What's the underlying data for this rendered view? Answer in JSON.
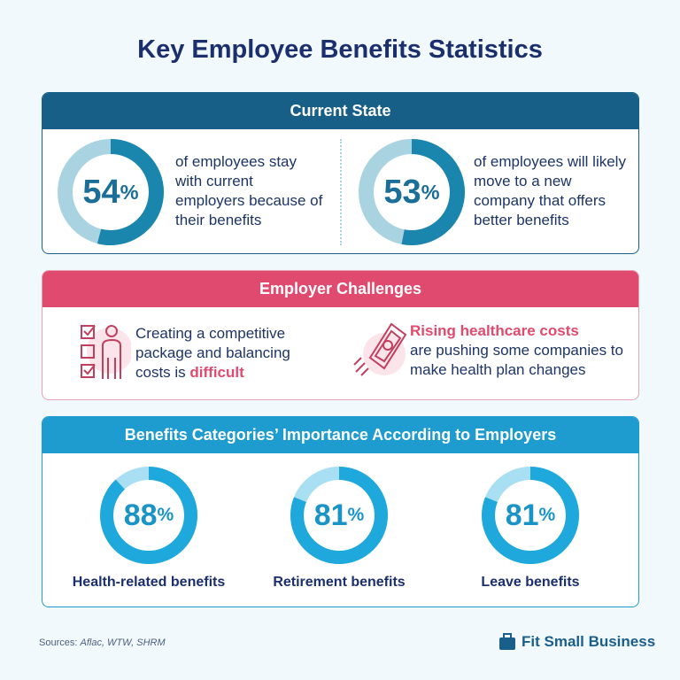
{
  "title": "Key Employee Benefits Statistics",
  "current_state": {
    "header": "Current State",
    "stats": [
      {
        "value": "54",
        "unit": "%",
        "text": "of employees stay with current employers because of their benefits"
      },
      {
        "value": "53",
        "unit": "%",
        "text": "of employees will likely move to a new company that offers better benefits"
      }
    ],
    "colors": {
      "fill": "#1a86ad",
      "track": "#a9d3e0"
    }
  },
  "challenges": {
    "header": "Employer Challenges",
    "items": [
      {
        "icon": "checklist-person-icon",
        "text_before": "Creating a competitive package and balancing costs is ",
        "highlight": "difficult"
      },
      {
        "icon": "money-bill-rising-icon",
        "highlight": "Rising healthcare costs",
        "text_after": "are pushing some companies to make health plan changes"
      }
    ],
    "accent": "#e04a6e"
  },
  "categories": {
    "header": "Benefits Categories’ Importance According to Employers",
    "items": [
      {
        "value": "88",
        "unit": "%",
        "label": "Health-related benefits"
      },
      {
        "value": "81",
        "unit": "%",
        "label": "Retirement benefits"
      },
      {
        "value": "81",
        "unit": "%",
        "label": "Leave benefits"
      }
    ],
    "colors": {
      "fill": "#1ea8dc",
      "track": "#a9dff3"
    }
  },
  "footer": {
    "sources_label": "Sources:",
    "sources": "Aflac, WTW, SHRM",
    "brand": "Fit Small Business"
  },
  "chart_data": [
    {
      "type": "pie",
      "variant": "donut",
      "values": [
        54,
        46
      ],
      "center_label": "54%"
    },
    {
      "type": "pie",
      "variant": "donut",
      "values": [
        53,
        47
      ],
      "center_label": "53%"
    },
    {
      "type": "pie",
      "variant": "donut",
      "values": [
        88,
        12
      ],
      "center_label": "88%"
    },
    {
      "type": "pie",
      "variant": "donut",
      "values": [
        81,
        19
      ],
      "center_label": "81%"
    },
    {
      "type": "pie",
      "variant": "donut",
      "values": [
        81,
        19
      ],
      "center_label": "81%"
    }
  ]
}
